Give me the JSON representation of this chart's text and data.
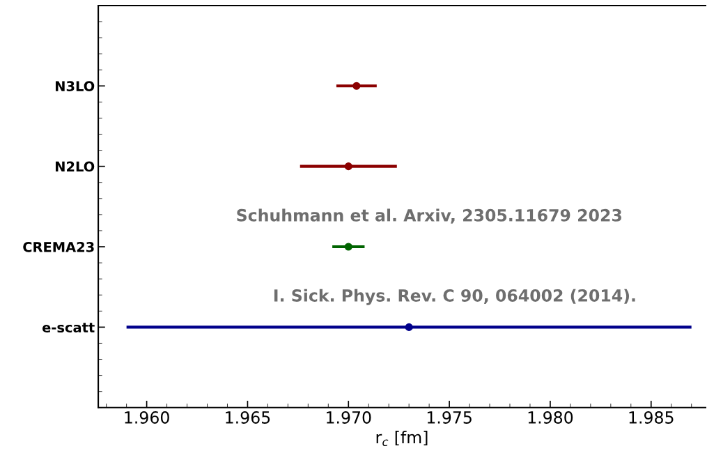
{
  "chart_data": {
    "type": "scatter",
    "orientation": "horizontal",
    "categories": [
      "N3LO",
      "N2LO",
      "CREMA23",
      "e-scatt"
    ],
    "values": [
      1.9704,
      1.97,
      1.97,
      1.973
    ],
    "errors": [
      0.001,
      0.0024,
      0.0008,
      0.014
    ],
    "colors": [
      "#8b0000",
      "#8b0000",
      "#006400",
      "#00008b"
    ],
    "marker": "circle",
    "xlim": [
      1.9576,
      1.9877
    ],
    "xticks": [
      {
        "value": 1.96,
        "label": "1.960"
      },
      {
        "value": 1.965,
        "label": "1.965"
      },
      {
        "value": 1.97,
        "label": "1.970"
      },
      {
        "value": 1.975,
        "label": "1.975"
      },
      {
        "value": 1.98,
        "label": "1.980"
      },
      {
        "value": 1.985,
        "label": "1.985"
      }
    ],
    "xlabel": "r$_{c}$ [fm]",
    "annotations": [
      "Schuhmann et al. Arxiv, 2305.11679 2023",
      "I. Sick. Phys. Rev. C 90, 064002 (2014)."
    ],
    "grid": false,
    "legend": false
  }
}
